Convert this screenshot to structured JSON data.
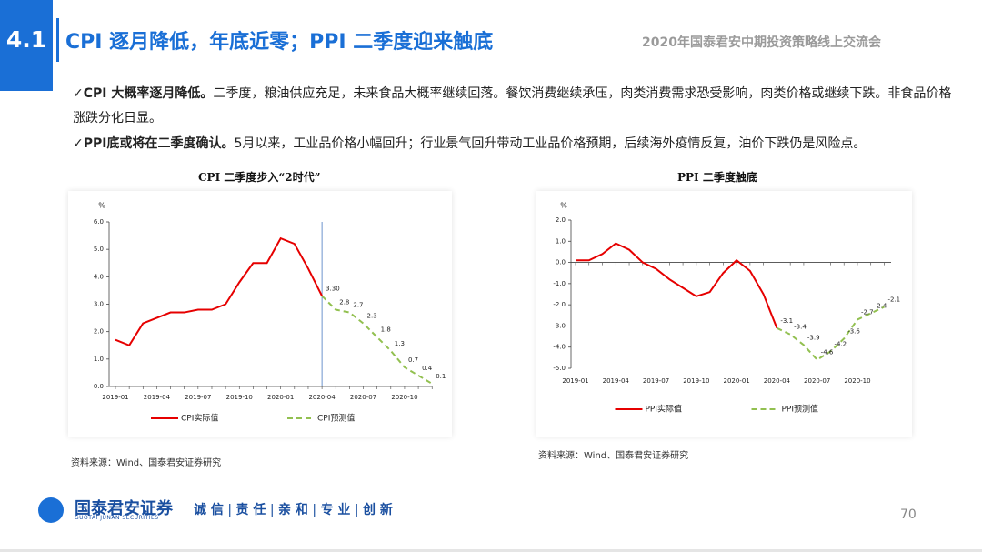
{
  "header": {
    "section": "4.1",
    "title": "CPI 逐月降低，年底近零；PPI 二季度迎来触底",
    "event": "2020年国泰君安中期投资策略线上交流会"
  },
  "bullets": [
    {
      "bold": "CPI 大概率逐月降低。",
      "text": "二季度，粮油供应充足，未来食品大概率继续回落。餐饮消费继续承压，肉类消费需求恐受影响，肉类价格或继续下跌。非食品价格涨跌分化日显。"
    },
    {
      "bold": "PPI底或将在二季度确认。",
      "text": "5月以来，工业品价格小幅回升；行业景气回升带动工业品价格预期，后续海外疫情反复，油价下跌仍是风险点。"
    }
  ],
  "chart_data": [
    {
      "type": "line",
      "title": "CPI 二季度步入“2时代”",
      "y_unit": "%",
      "categories": [
        "2019-01",
        null,
        null,
        "2019-04",
        null,
        null,
        "2019-07",
        null,
        null,
        "2019-10",
        null,
        null,
        "2020-01",
        null,
        null,
        "2020-04",
        null,
        null,
        "2020-07",
        null,
        null,
        "2020-10",
        null,
        null
      ],
      "series": [
        {
          "name": "CPI实际值",
          "color": "#e60000",
          "line_style": "solid",
          "values": [
            1.7,
            1.5,
            2.3,
            2.5,
            2.7,
            2.7,
            2.8,
            2.8,
            3.0,
            3.8,
            4.5,
            4.5,
            5.4,
            5.2,
            4.3,
            3.3,
            null,
            null,
            null,
            null,
            null,
            null,
            null,
            null
          ]
        },
        {
          "name": "CPI预测值",
          "color": "#92c050",
          "line_style": "dashed",
          "values": [
            null,
            null,
            null,
            null,
            null,
            null,
            null,
            null,
            null,
            null,
            null,
            null,
            null,
            null,
            null,
            3.3,
            2.8,
            2.7,
            2.3,
            1.8,
            1.3,
            0.7,
            0.4,
            0.1
          ],
          "value_labels": [
            null,
            null,
            null,
            null,
            null,
            null,
            null,
            null,
            null,
            null,
            null,
            null,
            null,
            null,
            null,
            "3.30",
            "2.8",
            "2.7",
            "2.3",
            "1.8",
            "1.3",
            "0.7",
            "0.4",
            "0.1"
          ]
        }
      ],
      "ylim": [
        0,
        6
      ],
      "yticks": [
        {
          "value": 0,
          "label": "0.0"
        },
        {
          "value": 1,
          "label": "1.0"
        },
        {
          "value": 2,
          "label": "2.0"
        },
        {
          "value": 3,
          "label": "3.0"
        },
        {
          "value": 4,
          "label": "4.0"
        },
        {
          "value": 5,
          "label": "5.0"
        },
        {
          "value": 6,
          "label": "6.0"
        }
      ]
    },
    {
      "type": "line",
      "title": "PPI 二季度触底",
      "y_unit": "%",
      "categories": [
        "2019-01",
        null,
        null,
        "2019-04",
        null,
        null,
        "2019-07",
        null,
        null,
        "2019-10",
        null,
        null,
        "2020-01",
        null,
        null,
        "2020-04",
        null,
        null,
        "2020-07",
        null,
        null,
        "2020-10",
        null,
        null
      ],
      "series": [
        {
          "name": "PPI实际值",
          "color": "#e60000",
          "line_style": "solid",
          "values": [
            0.1,
            0.1,
            0.4,
            0.9,
            0.6,
            0.0,
            -0.3,
            -0.8,
            -1.2,
            -1.6,
            -1.4,
            -0.5,
            0.1,
            -0.4,
            -1.5,
            -3.1,
            null,
            null,
            null,
            null,
            null,
            null,
            null,
            null
          ]
        },
        {
          "name": "PPI预测值",
          "color": "#92c050",
          "line_style": "dashed",
          "values": [
            null,
            null,
            null,
            null,
            null,
            null,
            null,
            null,
            null,
            null,
            null,
            null,
            null,
            null,
            null,
            -3.1,
            -3.4,
            -3.9,
            -4.6,
            -4.2,
            -3.6,
            -2.7,
            -2.4,
            -2.1
          ],
          "value_labels": [
            null,
            null,
            null,
            null,
            null,
            null,
            null,
            null,
            null,
            null,
            null,
            null,
            null,
            null,
            null,
            "-3.1",
            "-3.4",
            "-3.9",
            "-4.6",
            "-4.2",
            "-3.6",
            "-2.7",
            "-2.4",
            "-2.1"
          ]
        }
      ],
      "ylim": [
        -5,
        2
      ],
      "yticks": [
        {
          "value": -5,
          "label": "-5.0"
        },
        {
          "value": -4,
          "label": "-4.0"
        },
        {
          "value": -3,
          "label": "-3.0"
        },
        {
          "value": -2,
          "label": "-2.0"
        },
        {
          "value": -1,
          "label": "-1.0"
        },
        {
          "value": 0,
          "label": "0.0"
        },
        {
          "value": 1,
          "label": "1.0"
        },
        {
          "value": 2,
          "label": "2.0"
        }
      ]
    }
  ],
  "sources": [
    "资料来源：Wind、国泰君安证券研究",
    "资料来源：Wind、国泰君安证券研究"
  ],
  "footer": {
    "company": "国泰君安证券",
    "company_en": "GUOTAI JUNAN SECURITIES",
    "slogan": [
      "诚 信",
      "责 任",
      "亲 和",
      "专 业",
      "创 新"
    ],
    "page": "70"
  }
}
